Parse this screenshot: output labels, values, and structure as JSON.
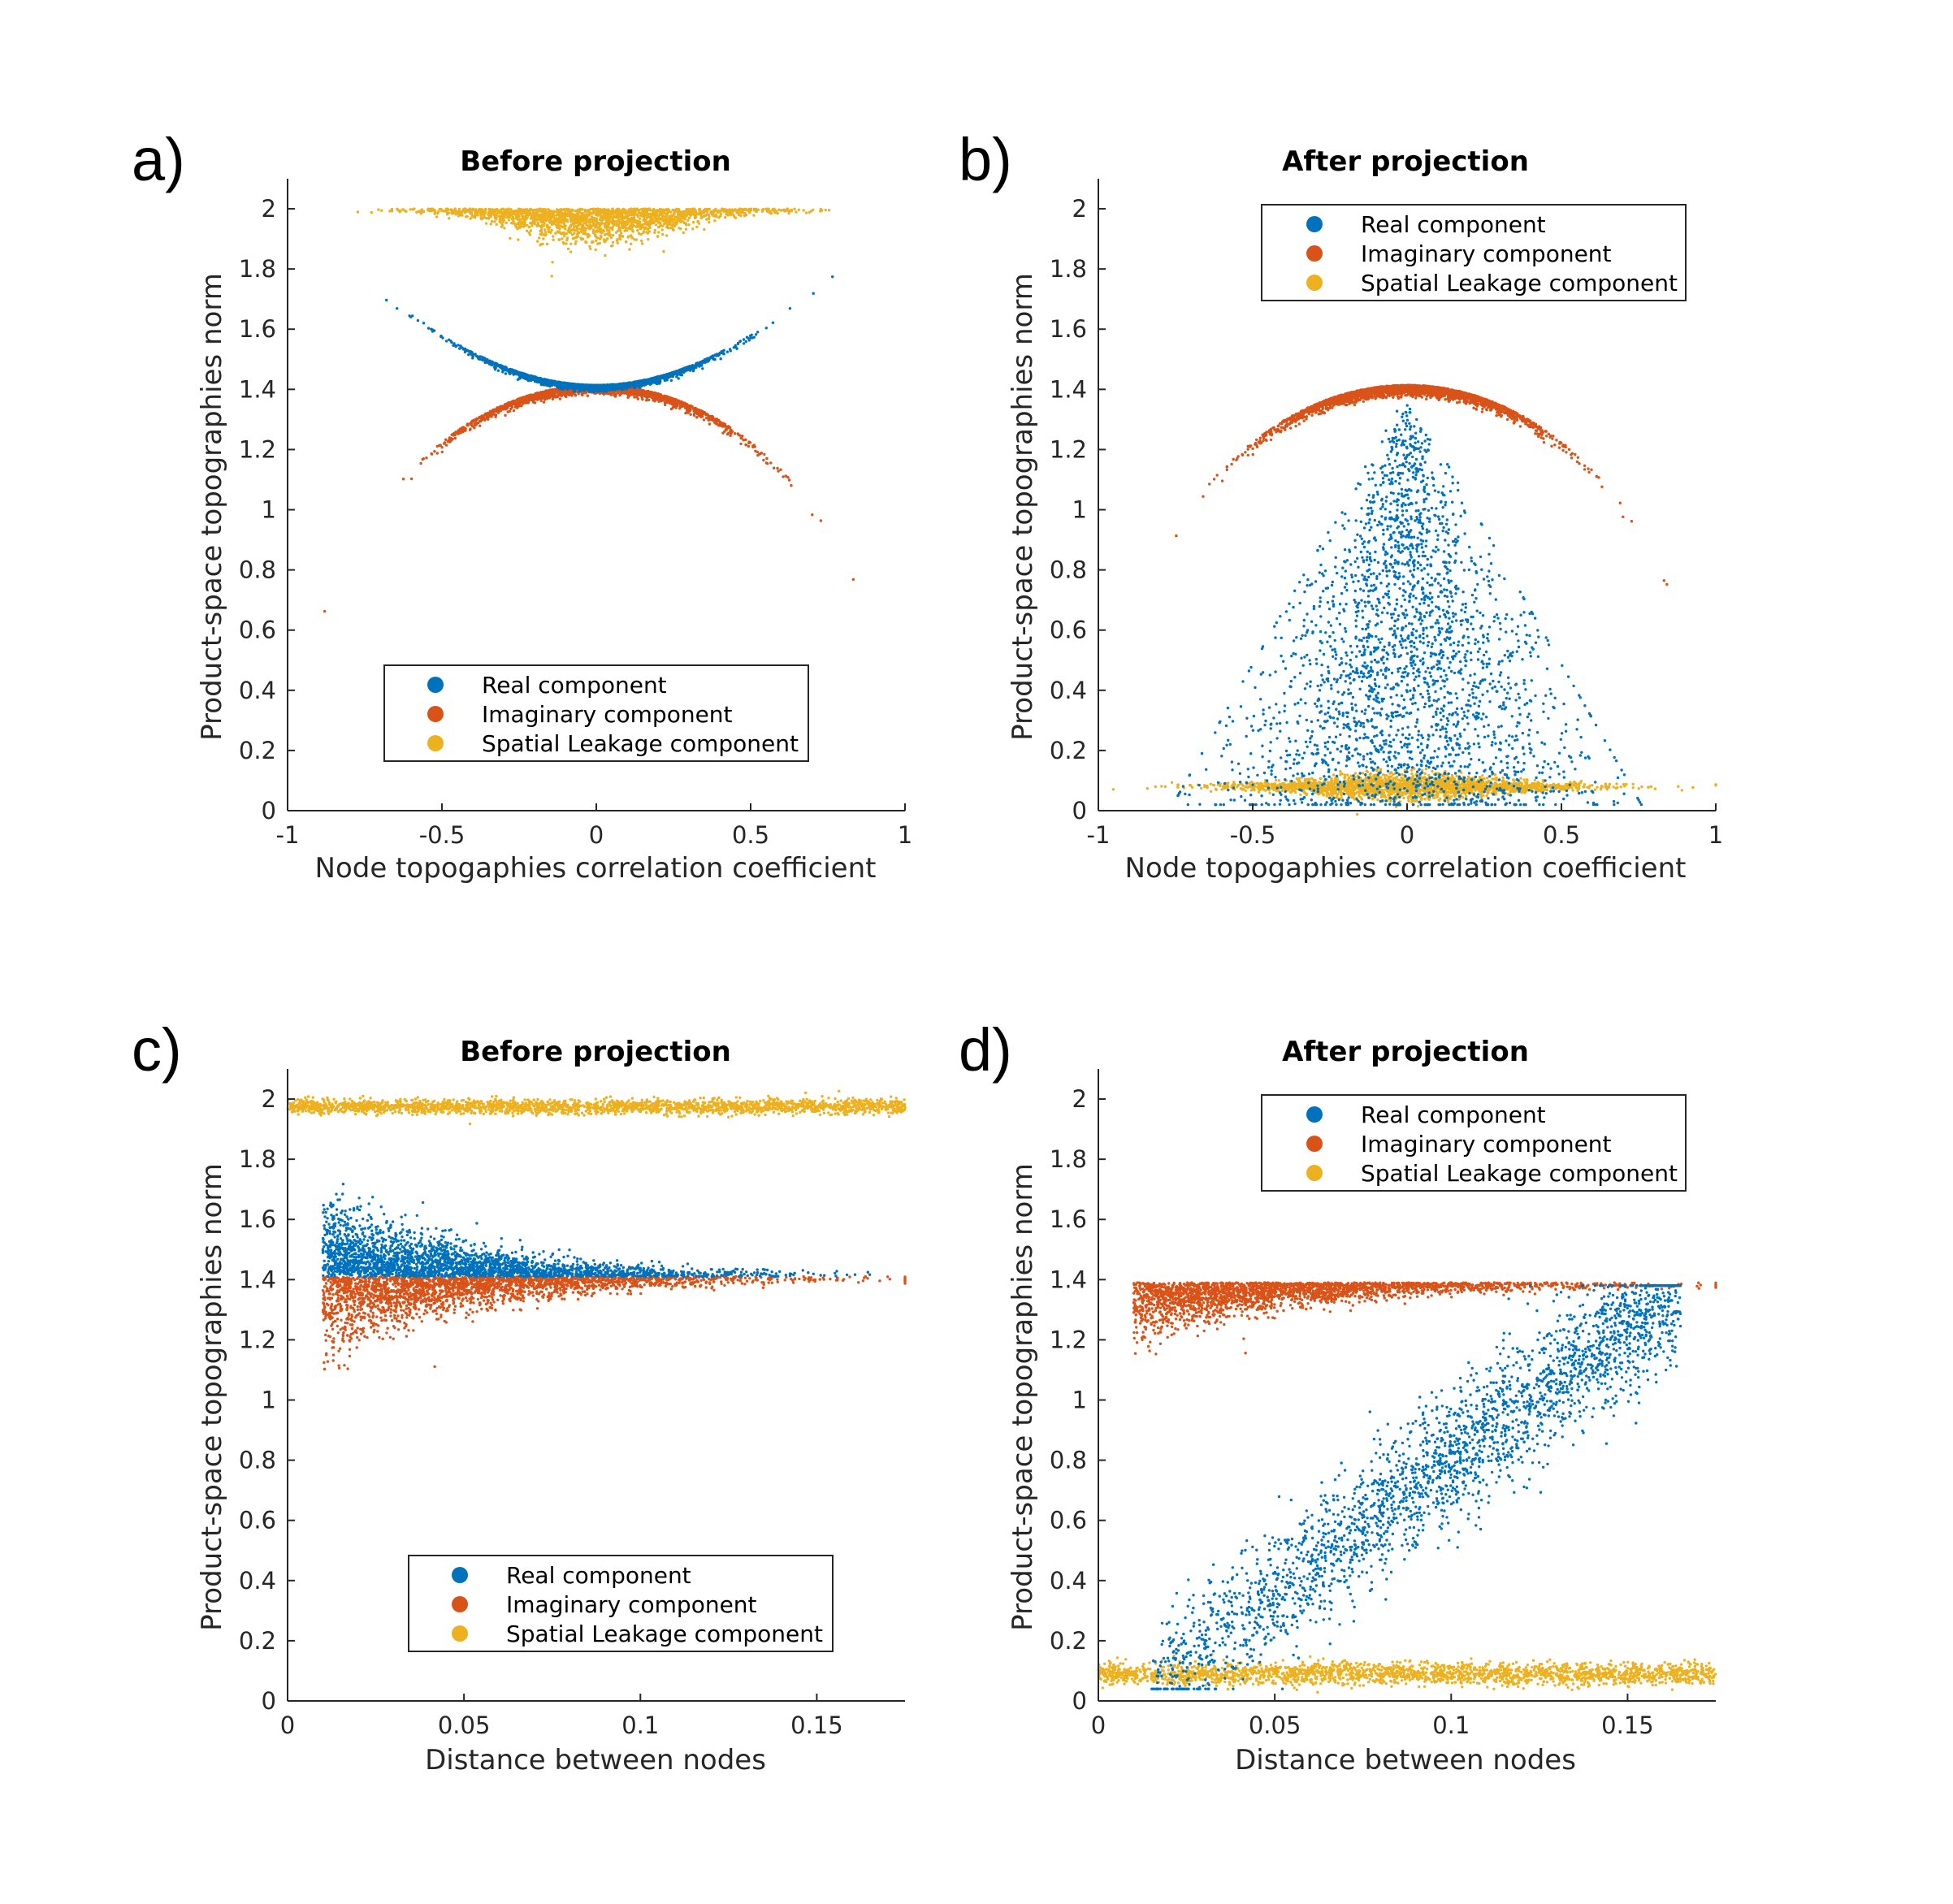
{
  "panels": [
    {
      "letter": "a)",
      "title": "Before projection",
      "xlabel": "Node topogaphies correlation coefficient",
      "ylabel": "Product-space topographies norm",
      "legend_items": [
        "Real component",
        "Imaginary component",
        "Spatial Leakage component"
      ]
    },
    {
      "letter": "b)",
      "title": "After projection",
      "xlabel": "Node topogaphies correlation coefficient",
      "ylabel": "Product-space topographies norm",
      "legend_items": [
        "Real component",
        "Imaginary component",
        "Spatial Leakage component"
      ]
    },
    {
      "letter": "c)",
      "title": "Before projection",
      "xlabel": "Distance between nodes",
      "ylabel": "Product-space topographies norm",
      "legend_items": [
        "Real component",
        "Imaginary component",
        "Spatial Leakage component"
      ]
    },
    {
      "letter": "d)",
      "title": "After projection",
      "xlabel": "Distance between nodes",
      "ylabel": "Product-space topographies norm",
      "legend_items": [
        "Real component",
        "Imaginary component",
        "Spatial Leakage component"
      ]
    }
  ],
  "colors": {
    "real": "#0072BD",
    "imaginary": "#D95319",
    "leakage": "#EDB120"
  },
  "chart_data": [
    {
      "panel": "a",
      "type": "scatter",
      "title": "Before projection",
      "xlabel": "Node topogaphies correlation coefficient",
      "ylabel": "Product-space topographies norm",
      "xlim": [
        -1,
        1
      ],
      "ylim": [
        0,
        2.1
      ],
      "xticks": [
        "-1",
        "-0.5",
        "0",
        "0.5",
        "1"
      ],
      "yticks": [
        "0",
        "0.2",
        "0.4",
        "0.6",
        "0.8",
        "1",
        "1.2",
        "1.4",
        "1.6",
        "1.8",
        "2"
      ],
      "legend_position": "lower-center",
      "series": [
        {
          "name": "Real component",
          "relation": "y = sqrt(2*(1+x^2))",
          "x_range": [
            -1,
            1
          ],
          "y_range": [
            1.41,
            2.0
          ]
        },
        {
          "name": "Imaginary component",
          "relation": "y = sqrt(2*(1-x^2))",
          "x_range": [
            -1,
            1
          ],
          "y_range": [
            0.0,
            1.41
          ]
        },
        {
          "name": "Spatial Leakage component",
          "relation": "y ≈ 1.96",
          "x_range": [
            -1,
            1
          ],
          "y_range": [
            1.9,
            2.0
          ]
        }
      ]
    },
    {
      "panel": "b",
      "type": "scatter",
      "title": "After projection",
      "xlabel": "Node topogaphies correlation coefficient",
      "ylabel": "Product-space topographies norm",
      "xlim": [
        -1,
        1
      ],
      "ylim": [
        0,
        2.1
      ],
      "xticks": [
        "-1",
        "-0.5",
        "0",
        "0.5",
        "1"
      ],
      "yticks": [
        "0",
        "0.2",
        "0.4",
        "0.6",
        "0.8",
        "1",
        "1.2",
        "1.4",
        "1.6",
        "1.8",
        "2"
      ],
      "legend_position": "top-right",
      "series": [
        {
          "name": "Real component",
          "relation": "triangular cloud, apex at x=0, y≈1.35",
          "x_range": [
            -1,
            1
          ],
          "y_range": [
            0.0,
            1.35
          ]
        },
        {
          "name": "Imaginary component",
          "relation": "y = sqrt(2*(1-x^2))",
          "x_range": [
            -1,
            1
          ],
          "y_range": [
            0.0,
            1.41
          ]
        },
        {
          "name": "Spatial Leakage component",
          "relation": "y ≈ 0.08",
          "x_range": [
            -1,
            1
          ],
          "y_range": [
            0.04,
            0.14
          ]
        }
      ]
    },
    {
      "panel": "c",
      "type": "scatter",
      "title": "Before projection",
      "xlabel": "Distance between nodes",
      "ylabel": "Product-space topographies norm",
      "xlim": [
        0,
        0.175
      ],
      "ylim": [
        0,
        2.1
      ],
      "xticks": [
        "0",
        "0.05",
        "0.1",
        "0.15"
      ],
      "yticks": [
        "0",
        "0.2",
        "0.4",
        "0.6",
        "0.8",
        "1",
        "1.2",
        "1.4",
        "1.6",
        "1.8",
        "2"
      ],
      "legend_position": "lower-center",
      "series": [
        {
          "name": "Real component",
          "relation": "spread above 1.41 decaying with distance",
          "x_range": [
            0.01,
            0.16
          ],
          "y_range": [
            1.41,
            1.85
          ]
        },
        {
          "name": "Imaginary component",
          "relation": "spread below 1.41 decaying with distance",
          "x_range": [
            0.01,
            0.175
          ],
          "y_range": [
            0.75,
            1.41
          ]
        },
        {
          "name": "Spatial Leakage component",
          "relation": "y ≈ 1.97",
          "x_range": [
            0,
            0.175
          ],
          "y_range": [
            1.93,
            2.0
          ]
        }
      ]
    },
    {
      "panel": "d",
      "type": "scatter",
      "title": "After projection",
      "xlabel": "Distance between nodes",
      "ylabel": "Product-space topographies norm",
      "xlim": [
        0,
        0.175
      ],
      "ylim": [
        0,
        2.1
      ],
      "xticks": [
        "0",
        "0.05",
        "0.1",
        "0.15"
      ],
      "yticks": [
        "0",
        "0.2",
        "0.4",
        "0.6",
        "0.8",
        "1",
        "1.2",
        "1.4",
        "1.6",
        "1.8",
        "2"
      ],
      "legend_position": "top-right",
      "series": [
        {
          "name": "Real component",
          "relation": "rising band from (0.015, 0.1) to (0.16, 1.35)",
          "x_range": [
            0.01,
            0.165
          ],
          "y_range": [
            0.05,
            1.38
          ]
        },
        {
          "name": "Imaginary component",
          "relation": "y ≈ 1.38, spreading down to 1.15 at small distance",
          "x_range": [
            0.01,
            0.175
          ],
          "y_range": [
            1.15,
            1.41
          ]
        },
        {
          "name": "Spatial Leakage component",
          "relation": "y ≈ 0.09",
          "x_range": [
            0,
            0.175
          ],
          "y_range": [
            0.05,
            0.15
          ]
        }
      ]
    }
  ]
}
